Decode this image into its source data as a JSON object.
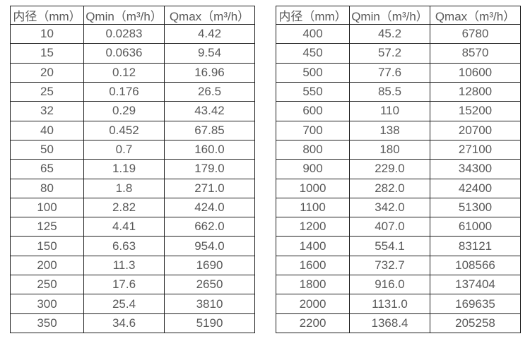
{
  "page": {
    "background_color": "#ffffff",
    "border_color": "#1f1f1f",
    "text_color": "#595959"
  },
  "tables": [
    {
      "name": "flow-spec-table-small-diameters",
      "headers": [
        "内径（mm）",
        "Qmin（m³/h）",
        "Qmax（m³/h）"
      ],
      "rows": [
        [
          "10",
          "0.0283",
          "4.42"
        ],
        [
          "15",
          "0.0636",
          "9.54"
        ],
        [
          "20",
          "0.12",
          "16.96"
        ],
        [
          "25",
          "0.176",
          "26.5"
        ],
        [
          "32",
          "0.29",
          "43.42"
        ],
        [
          "40",
          "0.452",
          "67.85"
        ],
        [
          "50",
          "0.7",
          "160.0"
        ],
        [
          "65",
          "1.19",
          "179.0"
        ],
        [
          "80",
          "1.8",
          "271.0"
        ],
        [
          "100",
          "2.82",
          "424.0"
        ],
        [
          "125",
          "4.41",
          "662.0"
        ],
        [
          "150",
          "6.63",
          "954.0"
        ],
        [
          "200",
          "11.3",
          "1690"
        ],
        [
          "250",
          "17.6",
          "2650"
        ],
        [
          "300",
          "25.4",
          "3810"
        ],
        [
          "350",
          "34.6",
          "5190"
        ]
      ]
    },
    {
      "name": "flow-spec-table-large-diameters",
      "headers": [
        "内径（mm）",
        "Qmin（m³/h）",
        "Qmax（m³/h）"
      ],
      "rows": [
        [
          "400",
          "45.2",
          "6780"
        ],
        [
          "450",
          "57.2",
          "8570"
        ],
        [
          "500",
          "77.6",
          "10600"
        ],
        [
          "550",
          "85.5",
          "12800"
        ],
        [
          "600",
          "110",
          "15200"
        ],
        [
          "700",
          "138",
          "20700"
        ],
        [
          "800",
          "180",
          "27100"
        ],
        [
          "900",
          "229.0",
          "34300"
        ],
        [
          "1000",
          "282.0",
          "42400"
        ],
        [
          "1100",
          "342.0",
          "51300"
        ],
        [
          "1200",
          "407.0",
          "61000"
        ],
        [
          "1400",
          "554.1",
          "83121"
        ],
        [
          "1600",
          "732.7",
          "108566"
        ],
        [
          "1800",
          "916.0",
          "137404"
        ],
        [
          "2000",
          "1131.0",
          "169635"
        ],
        [
          "2200",
          "1368.4",
          "205258"
        ]
      ]
    }
  ]
}
